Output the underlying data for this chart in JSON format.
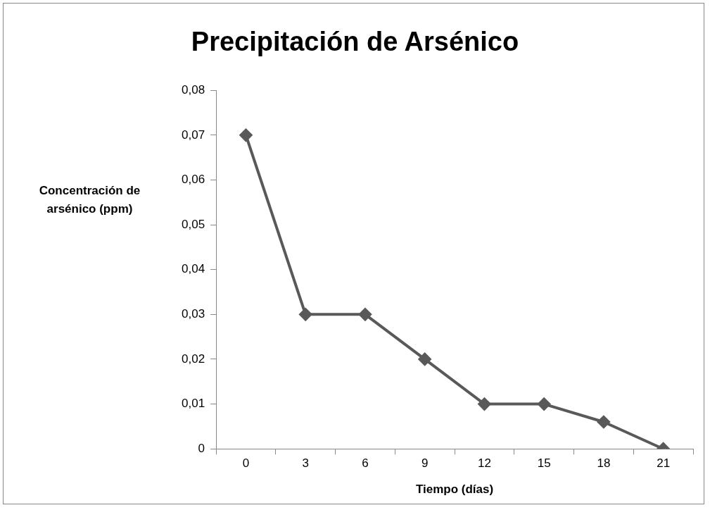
{
  "chart_data": {
    "type": "line",
    "title": "Precipitación de Arsénico",
    "xlabel": "Tiempo (días)",
    "ylabel": "Concentración de arsénico (ppm)",
    "categories": [
      "0",
      "3",
      "6",
      "9",
      "12",
      "15",
      "18",
      "21"
    ],
    "series": [
      {
        "color": "#595959",
        "values": [
          0.07,
          0.03,
          0.03,
          0.02,
          0.01,
          0.01,
          0.006,
          0
        ]
      }
    ],
    "ylim": [
      0,
      0.08
    ],
    "yticks": [
      {
        "value": 0,
        "label": "0"
      },
      {
        "value": 0.01,
        "label": "0,01"
      },
      {
        "value": 0.02,
        "label": "0,02"
      },
      {
        "value": 0.03,
        "label": "0,03"
      },
      {
        "value": 0.04,
        "label": "0,04"
      },
      {
        "value": 0.05,
        "label": "0,05"
      },
      {
        "value": 0.06,
        "label": "0,06"
      },
      {
        "value": 0.07,
        "label": "0,07"
      },
      {
        "value": 0.08,
        "label": "0,08"
      }
    ],
    "grid": false,
    "legend": false,
    "marker": "diamond",
    "line_style": "solid"
  }
}
